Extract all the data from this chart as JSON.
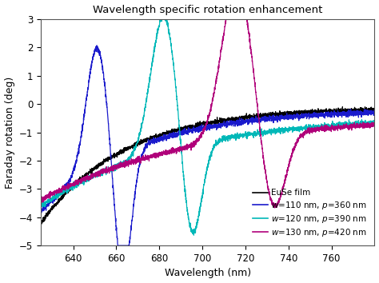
{
  "title": "Wavelength specific rotation enhancement",
  "xlabel": "Wavelength (nm)",
  "ylabel": "Faraday rotation (deg)",
  "xlim": [
    625,
    780
  ],
  "ylim": [
    -5,
    3
  ],
  "yticks": [
    -5,
    -4,
    -3,
    -2,
    -1,
    0,
    1,
    2,
    3
  ],
  "xticks": [
    640,
    660,
    680,
    700,
    720,
    740,
    760
  ],
  "background_color": "#ffffff",
  "legend_entries": [
    "EuSe film",
    "w=110 nm, p=360 nm",
    "w=120 nm, p=390 nm",
    "w=130 nm, p=420 nm"
  ],
  "line_colors": [
    "#000000",
    "#1a1acc",
    "#00b8b8",
    "#b0007a"
  ],
  "noise_scale": 0.04
}
